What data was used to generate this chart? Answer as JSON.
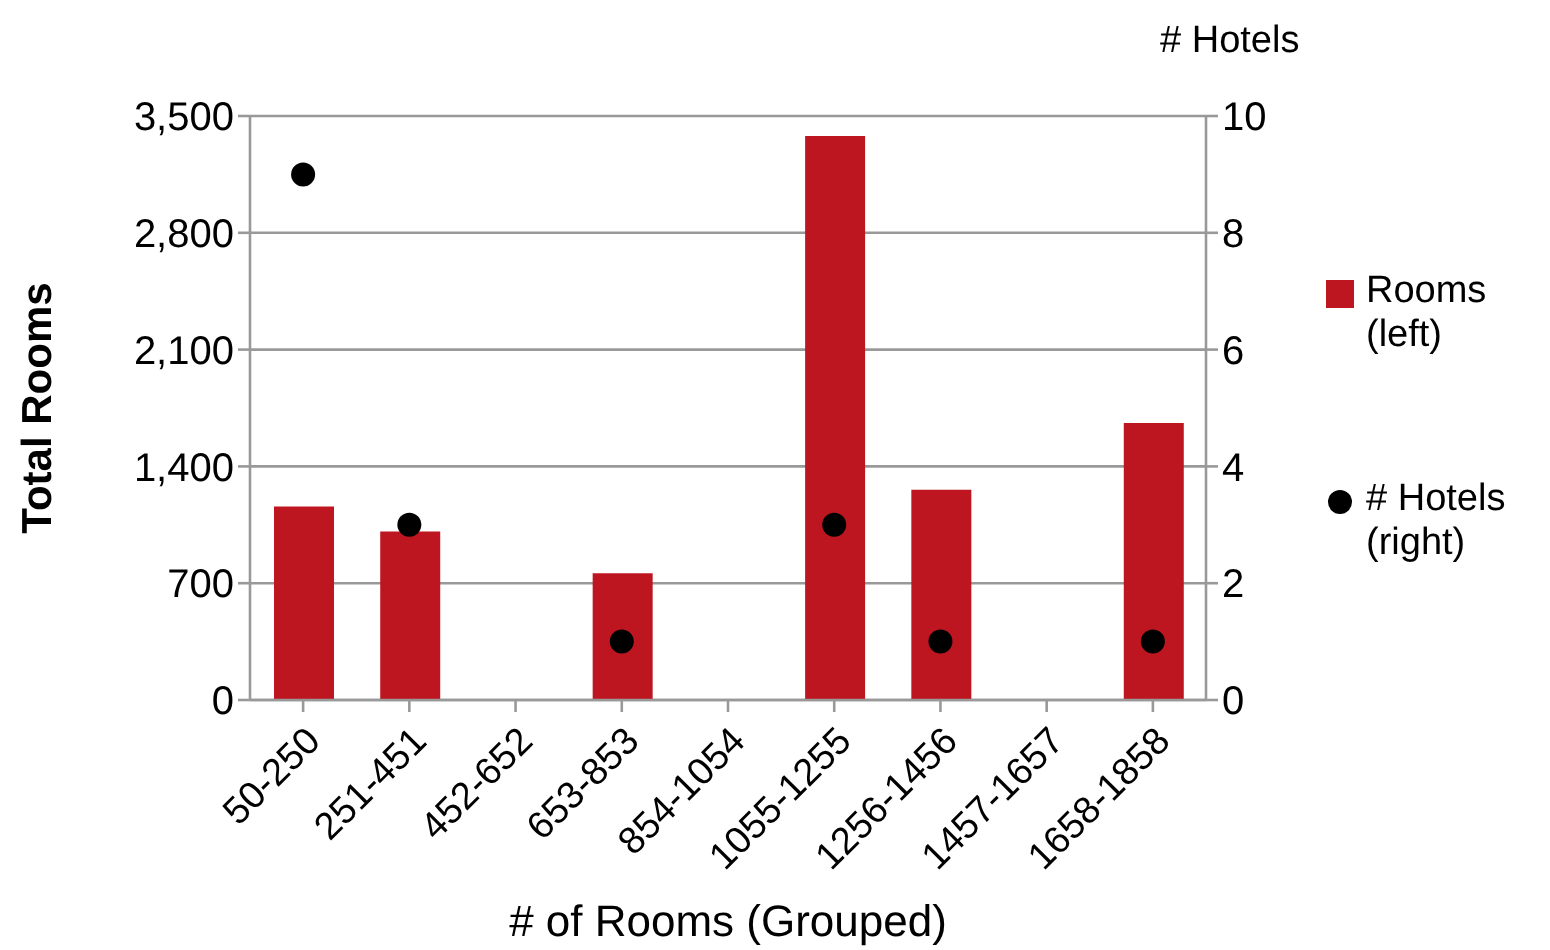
{
  "chart_data": {
    "type": "bar",
    "xlabel": "# of Rooms (Grouped)",
    "ylabel": "Total Rooms",
    "y2label": "# Hotels",
    "categories": [
      "50-250",
      "251-451",
      "452-652",
      "653-853",
      "854-1054",
      "1055-1255",
      "1256-1456",
      "1457-1657",
      "1658-1858"
    ],
    "series": [
      {
        "name": "Rooms (left)",
        "color": "#be1620",
        "values": [
          1160,
          1010,
          null,
          760,
          null,
          3380,
          1260,
          null,
          1660
        ]
      },
      {
        "name": "# Hotels (right)",
        "type": "scatter",
        "axis": "y2",
        "color": "#000000",
        "marker": "circle",
        "values": [
          9,
          3,
          null,
          1,
          null,
          3,
          1,
          null,
          1
        ]
      }
    ],
    "ylim": [
      0,
      3500
    ],
    "yticks": [
      0,
      700,
      {
        "value": 1400,
        "label": "1,400"
      },
      {
        "value": 2100,
        "label": "2,100"
      },
      {
        "value": 2800,
        "label": "2,800"
      },
      {
        "value": 3500,
        "label": "3,500"
      }
    ],
    "y2lim": [
      0,
      10
    ],
    "y2ticks": [
      0,
      2,
      4,
      6,
      8,
      10
    ],
    "grid": "y",
    "legend": "right"
  }
}
